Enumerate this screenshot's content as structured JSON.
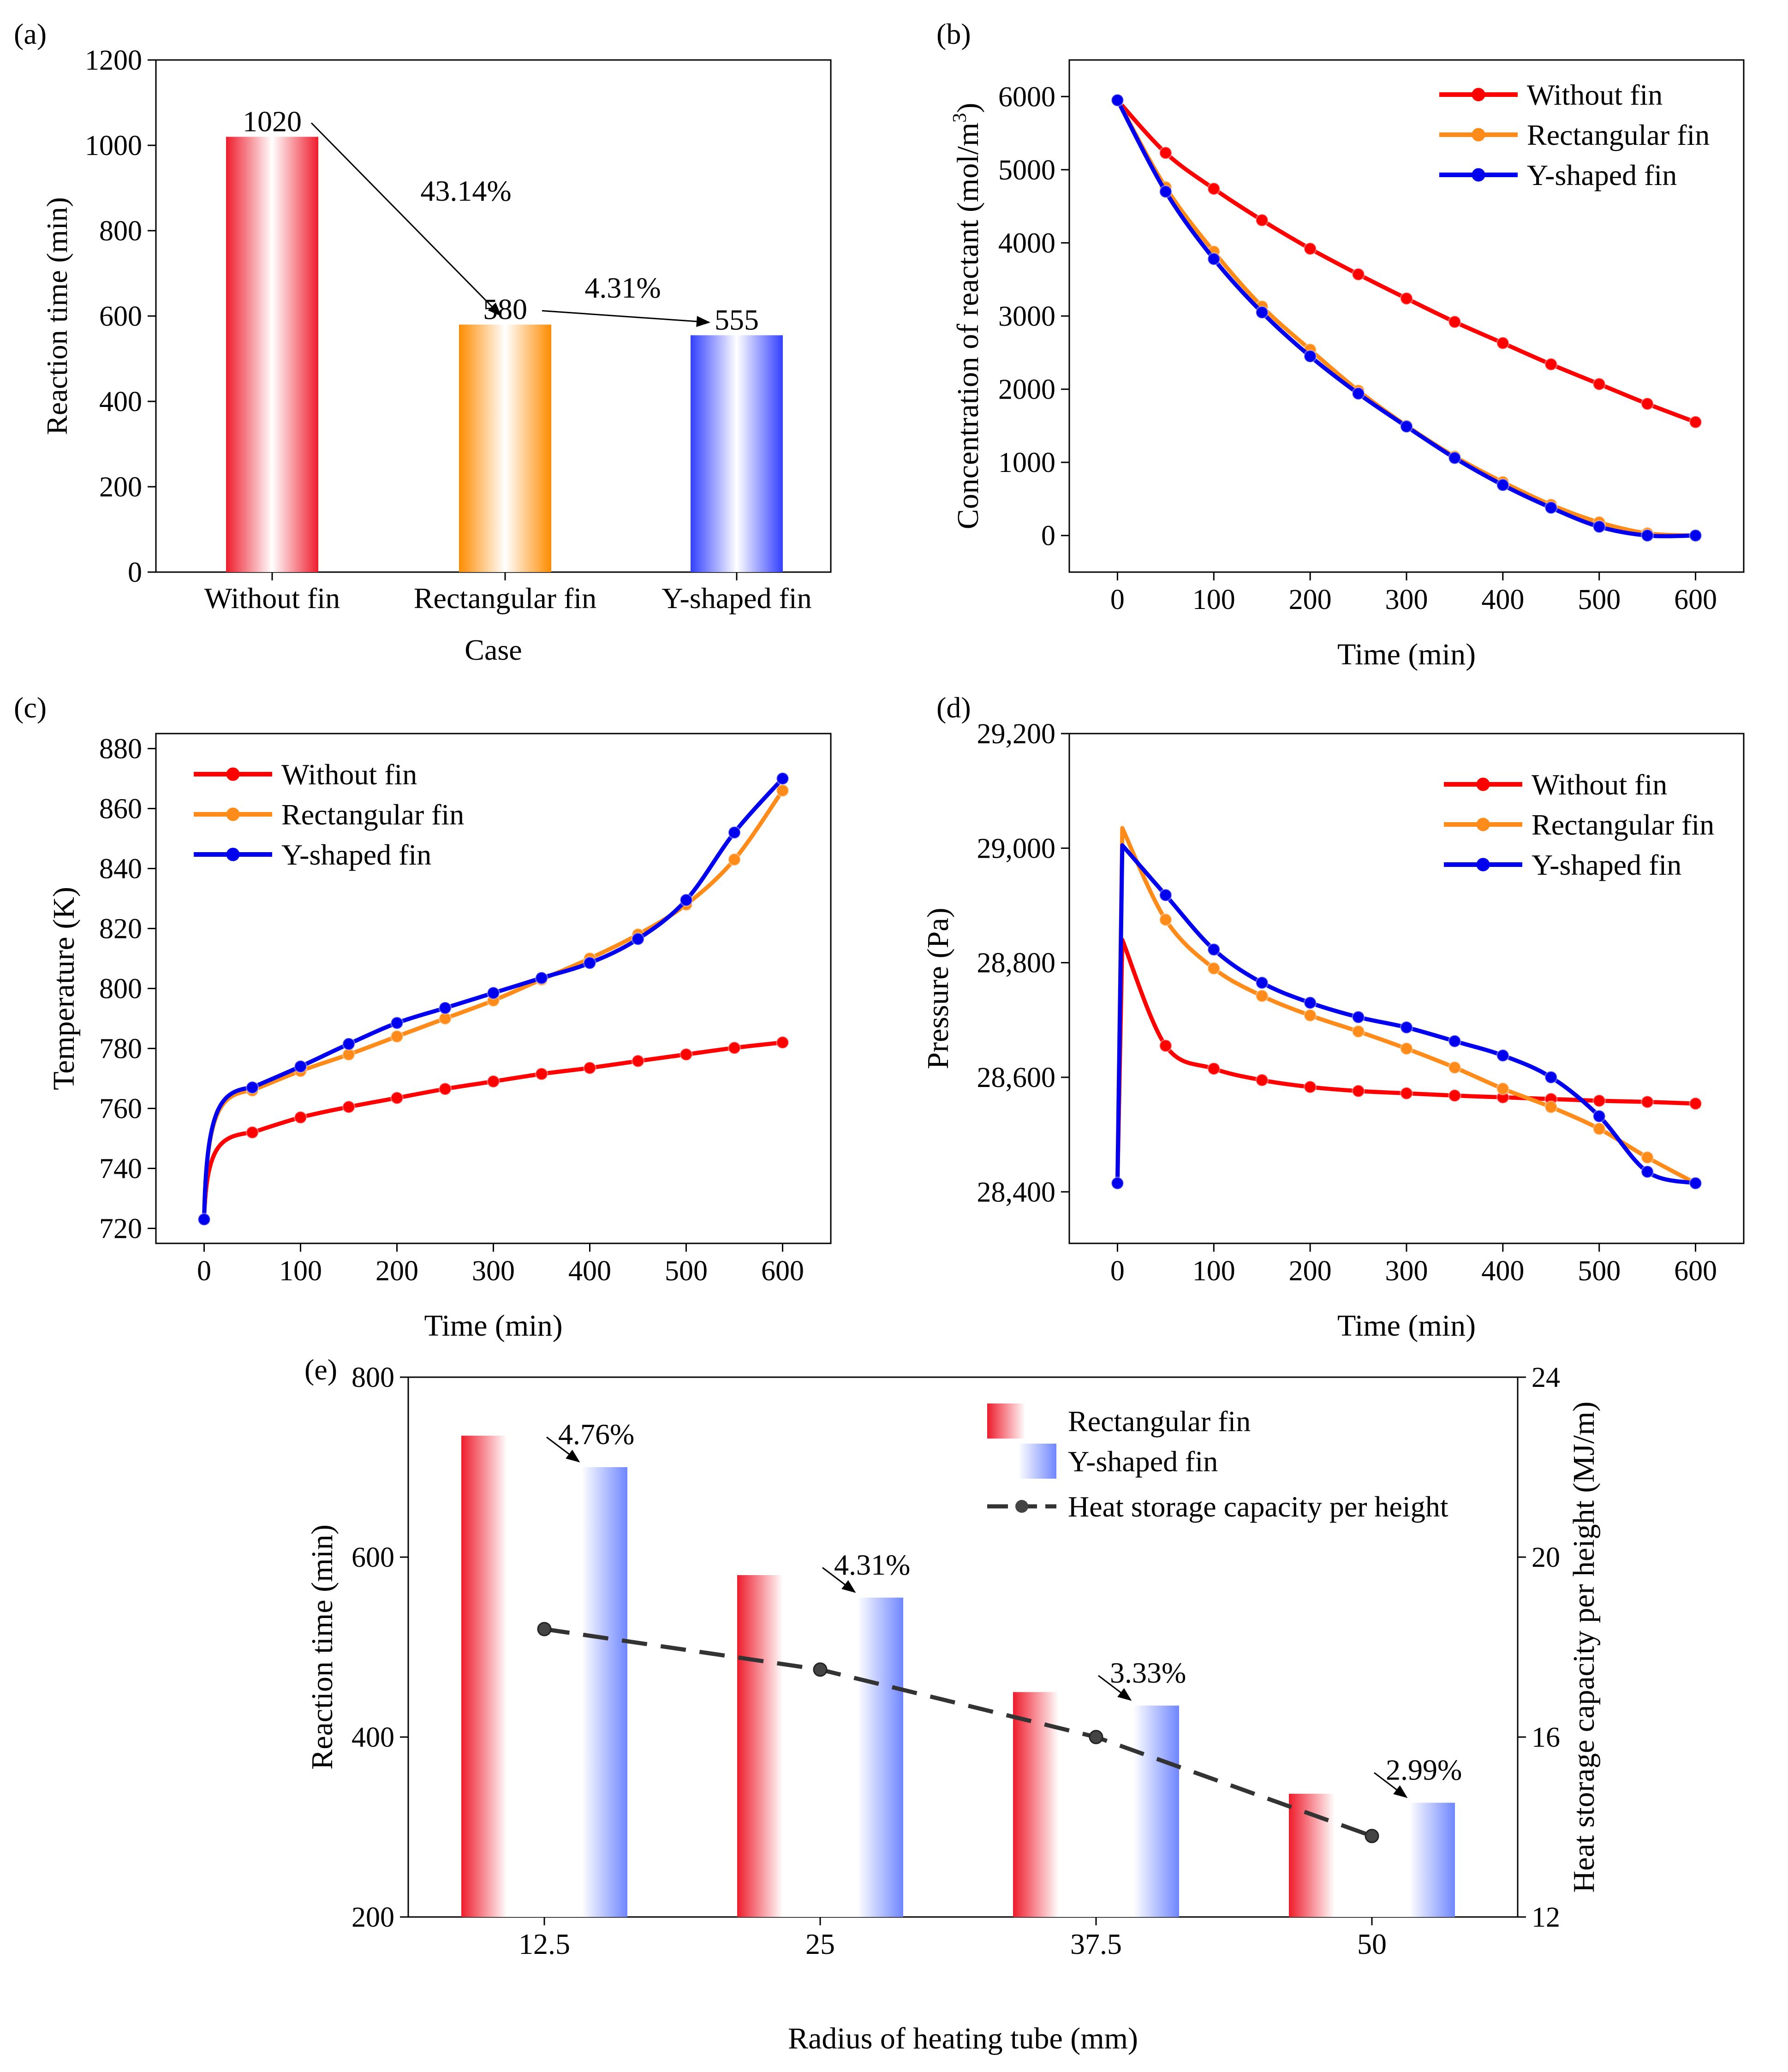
{
  "colors": {
    "red": "#ff0000",
    "orange": "#ff8c1a",
    "blue": "#0000ee",
    "bar_red": "#ee1c2c",
    "bar_orange": "#ff8c00",
    "bar_blue": "#3340ff",
    "bar_blue_light": "#6f86ff",
    "dark": "#333333"
  },
  "chart_data": [
    {
      "id": "a",
      "panel_label": "(a)",
      "type": "bar",
      "title": "",
      "xlabel": "Case",
      "ylabel": "Reaction time (min)",
      "categories": [
        "Without fin",
        "Rectangular fin",
        "Y-shaped fin"
      ],
      "values": [
        1020,
        580,
        555
      ],
      "value_labels": [
        "1020",
        "580",
        "555"
      ],
      "ylim": [
        0,
        1200
      ],
      "yticks": [
        0,
        200,
        400,
        600,
        800,
        1000,
        1200
      ],
      "ytick_labels": [
        "0",
        "200",
        "400",
        "600",
        "800",
        "1000",
        "1200"
      ],
      "annotations": [
        {
          "text": "43.14%",
          "from": "Without fin",
          "to": "Rectangular fin"
        },
        {
          "text": "4.31%",
          "from": "Rectangular fin",
          "to": "Y-shaped fin"
        }
      ]
    },
    {
      "id": "b",
      "panel_label": "(b)",
      "type": "line",
      "xlabel": "Time (min)",
      "ylabel_parts": [
        "Concentration of reactant (mol/m",
        "3",
        ")"
      ],
      "xlim": [
        -50,
        650
      ],
      "ylim": [
        -500,
        6500
      ],
      "xticks": [
        0,
        100,
        200,
        300,
        400,
        500,
        600
      ],
      "xtick_labels": [
        "0",
        "100",
        "200",
        "300",
        "400",
        "500",
        "600"
      ],
      "yticks": [
        0,
        1000,
        2000,
        3000,
        4000,
        5000,
        6000
      ],
      "ytick_labels": [
        "0",
        "1000",
        "2000",
        "3000",
        "4000",
        "5000",
        "6000"
      ],
      "legend_position": "top-right",
      "x": [
        0,
        50,
        100,
        150,
        200,
        250,
        300,
        350,
        400,
        450,
        500,
        550,
        600
      ],
      "series": [
        {
          "name": "Without fin",
          "color": "red",
          "values": [
            5950,
            5230,
            4740,
            4310,
            3920,
            3570,
            3240,
            2920,
            2630,
            2340,
            2070,
            1800,
            1550
          ]
        },
        {
          "name": "Rectangular fin",
          "color": "orange",
          "values": [
            5950,
            4760,
            3880,
            3130,
            2540,
            1980,
            1500,
            1080,
            730,
            420,
            180,
            30,
            0
          ]
        },
        {
          "name": "Y-shaped fin",
          "color": "blue",
          "values": [
            5950,
            4700,
            3780,
            3050,
            2450,
            1940,
            1490,
            1060,
            690,
            380,
            120,
            0,
            0
          ]
        }
      ]
    },
    {
      "id": "c",
      "panel_label": "(c)",
      "type": "line",
      "xlabel": "Time (min)",
      "ylabel": "Temperature (K)",
      "xlim": [
        -50,
        650
      ],
      "ylim": [
        715,
        885
      ],
      "xticks": [
        0,
        100,
        200,
        300,
        400,
        500,
        600
      ],
      "xtick_labels": [
        "0",
        "100",
        "200",
        "300",
        "400",
        "500",
        "600"
      ],
      "yticks": [
        720,
        740,
        760,
        780,
        800,
        820,
        840,
        860,
        880
      ],
      "ytick_labels": [
        "720",
        "740",
        "760",
        "780",
        "800",
        "820",
        "840",
        "860",
        "880"
      ],
      "legend_position": "top-left",
      "x": [
        0,
        50,
        100,
        150,
        200,
        250,
        300,
        350,
        400,
        450,
        500,
        550,
        600
      ],
      "series": [
        {
          "name": "Without fin",
          "color": "red",
          "values": [
            723,
            752,
            757,
            760.5,
            763.5,
            766.5,
            769,
            771.5,
            773.5,
            775.8,
            778,
            780.2,
            782
          ]
        },
        {
          "name": "Rectangular fin",
          "color": "orange",
          "values": [
            723,
            766,
            772.5,
            778,
            784,
            790,
            796,
            803,
            810,
            818,
            828,
            843,
            866
          ]
        },
        {
          "name": "Y-shaped fin",
          "color": "blue",
          "values": [
            723,
            767,
            774,
            781.5,
            788.5,
            793.5,
            798.5,
            803.5,
            808.5,
            816.5,
            829.5,
            852,
            870
          ]
        }
      ]
    },
    {
      "id": "d",
      "panel_label": "(d)",
      "type": "line",
      "xlabel": "Time (min)",
      "ylabel": "Pressure (Pa)",
      "xlim": [
        -50,
        650
      ],
      "ylim": [
        28310,
        29200
      ],
      "xticks": [
        0,
        100,
        200,
        300,
        400,
        500,
        600
      ],
      "xtick_labels": [
        "0",
        "100",
        "200",
        "300",
        "400",
        "500",
        "600"
      ],
      "yticks": [
        28400,
        28600,
        28800,
        29000,
        29200
      ],
      "ytick_labels": [
        "28,400",
        "28,600",
        "28,800",
        "29,000",
        "29,200"
      ],
      "legend_position": "top-right",
      "x": [
        0,
        50,
        100,
        150,
        200,
        250,
        300,
        350,
        400,
        450,
        500,
        550,
        600
      ],
      "series": [
        {
          "name": "Without fin",
          "color": "red",
          "values": [
            28415,
            28655,
            28615,
            28595,
            28583,
            28576,
            28572,
            28568,
            28565,
            28562,
            28559,
            28557,
            28554
          ]
        },
        {
          "name": "Rectangular fin",
          "color": "orange",
          "values": [
            28415,
            28875,
            28790,
            28742,
            28708,
            28680,
            28650,
            28617,
            28580,
            28548,
            28510,
            28460,
            28415
          ]
        },
        {
          "name": "Y-shaped fin",
          "color": "blue",
          "values": [
            28415,
            28918,
            28823,
            28765,
            28730,
            28705,
            28687,
            28663,
            28638,
            28600,
            28532,
            28435,
            28415
          ]
        }
      ],
      "peaks": {
        "Without fin": 28840,
        "Rectangular fin": 29035,
        "Y-shaped fin": 29005
      },
      "peak_time": 5
    },
    {
      "id": "e",
      "panel_label": "(e)",
      "type": "bar",
      "xlabel": "Radius of heating tube (mm)",
      "ylabel": "Reaction time (min)",
      "y2label": "Heat storage capacity per height (MJ/m)",
      "categories": [
        "12.5",
        "25",
        "37.5",
        "50"
      ],
      "ylim": [
        200,
        800
      ],
      "yticks": [
        200,
        400,
        600,
        800
      ],
      "ytick_labels": [
        "200",
        "400",
        "600",
        "800"
      ],
      "y2lim": [
        12,
        24
      ],
      "y2ticks": [
        12,
        16,
        20,
        24
      ],
      "y2tick_labels": [
        "12",
        "16",
        "20",
        "24"
      ],
      "legend_position": "top-right",
      "series": [
        {
          "name": "Rectangular fin",
          "color": "bar_red",
          "values": [
            735,
            580,
            450,
            337
          ]
        },
        {
          "name": "Y-shaped fin",
          "color": "bar_blue",
          "values": [
            700,
            555,
            435,
            327
          ]
        }
      ],
      "line_series": {
        "name": "Heat storage capacity per height",
        "color": "dark",
        "values": [
          18.4,
          17.5,
          16.0,
          13.8
        ]
      },
      "reductions": [
        "4.76%",
        "4.31%",
        "3.33%",
        "2.99%"
      ]
    }
  ]
}
